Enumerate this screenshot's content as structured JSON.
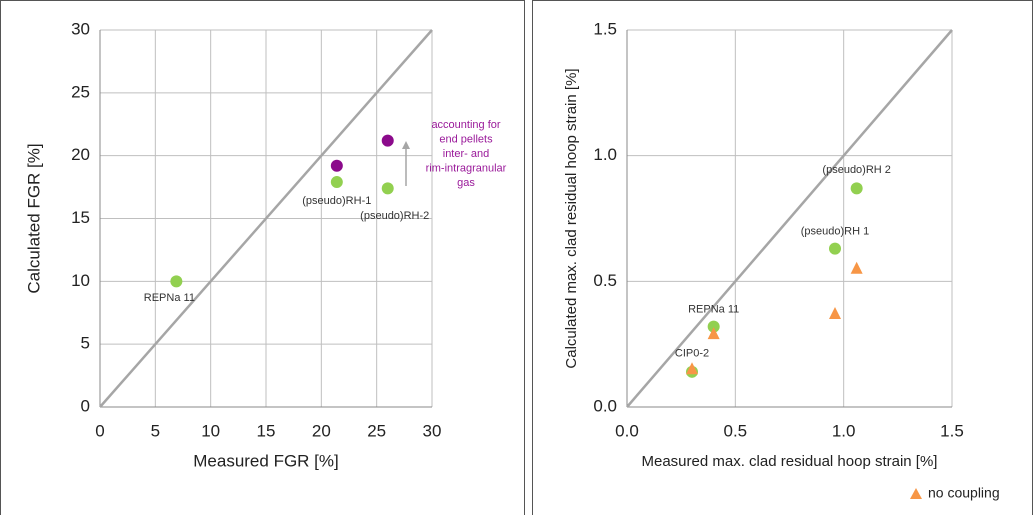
{
  "chart_data": [
    {
      "type": "scatter",
      "xlabel": "Measured FGR [%]",
      "ylabel": "Calculated FGR [%]",
      "xlim": [
        0,
        30
      ],
      "ylim": [
        0,
        30
      ],
      "xticks": [
        0,
        5,
        10,
        15,
        20,
        25,
        30
      ],
      "yticks": [
        0,
        5,
        10,
        15,
        20,
        25,
        30
      ],
      "grid": true,
      "identity_line": true,
      "series": [
        {
          "color": "#92d050",
          "marker": "circle",
          "x": [
            6.9,
            21.4,
            26.0
          ],
          "values": [
            10.0,
            17.9,
            17.4
          ],
          "point_labels": [
            "REPNa 11",
            "(pseudo)RH-1",
            "(pseudo)RH-2"
          ]
        },
        {
          "color": "#8b0a8b",
          "marker": "circle",
          "x": [
            21.4,
            26.0
          ],
          "values": [
            19.2,
            21.2
          ]
        }
      ],
      "annotation_lines": [
        "accounting for",
        "end pellets",
        "inter- and",
        "rim-intragranular",
        "gas"
      ]
    },
    {
      "type": "scatter",
      "xlabel": "Measured max. clad residual hoop strain [%]",
      "ylabel": "Calculated max. clad residual hoop strain [%]",
      "xlim": [
        0,
        1.5
      ],
      "ylim": [
        0,
        1.5
      ],
      "xticks": [
        {
          "value": 0,
          "label": "0.0"
        },
        0.5,
        {
          "value": 1,
          "label": "1.0"
        },
        1.5
      ],
      "yticks": [
        {
          "value": 0,
          "label": "0.0"
        },
        0.5,
        {
          "value": 1,
          "label": "1.0"
        },
        1.5
      ],
      "grid": true,
      "identity_line": true,
      "series": [
        {
          "color": "#92d050",
          "marker": "circle",
          "x": [
            0.3,
            0.4,
            0.96,
            1.06
          ],
          "values": [
            0.14,
            0.32,
            0.63,
            0.87
          ],
          "point_labels": [
            "CIP0-2",
            "REPNa 11",
            "(pseudo)RH 1",
            "(pseudo)RH 2"
          ]
        },
        {
          "name": "no coupling",
          "color": "#f79646",
          "marker": "triangle",
          "x": [
            0.3,
            0.4,
            0.96,
            1.06
          ],
          "values": [
            0.15,
            0.29,
            0.37,
            0.55
          ]
        }
      ]
    }
  ]
}
